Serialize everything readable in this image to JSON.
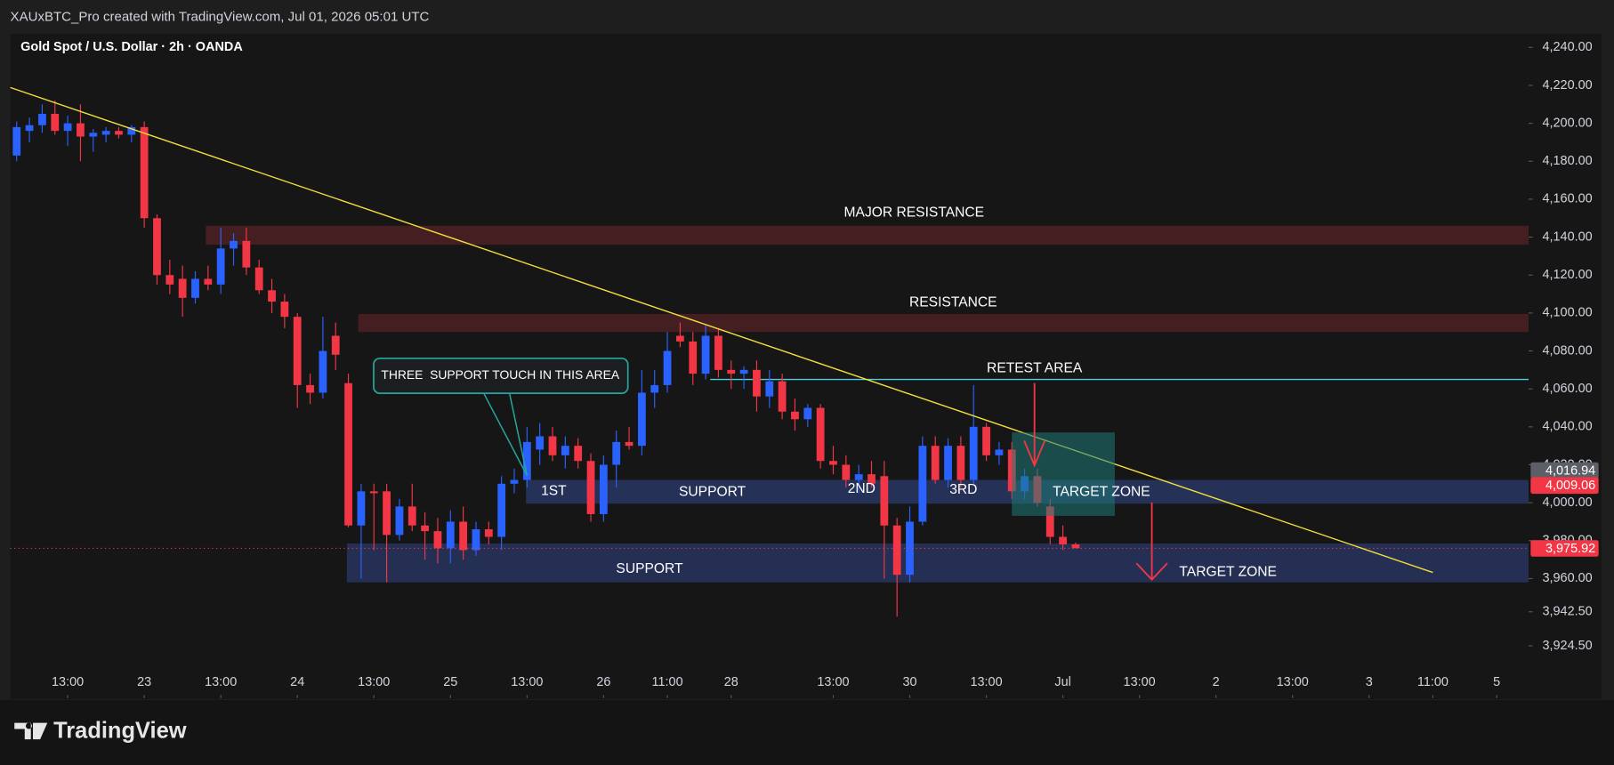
{
  "header": {
    "caption": "XAUxBTC_Pro created with TradingView.com, Jul 01, 2026 05:01 UTC",
    "brand": "TradingView"
  },
  "chart_data": {
    "type": "candlestick",
    "title": "Gold Spot / U.S. Dollar · 2h · OANDA",
    "up_color": "#2962ff",
    "down_color": "#f23645",
    "open": [
      4183,
      4196,
      4199,
      4205,
      4196,
      4200,
      4193,
      4194,
      4196,
      4194,
      4198,
      4150,
      4120,
      4118,
      4108,
      4118,
      4115,
      4134,
      4138,
      4124,
      4112,
      4106,
      4098,
      4062,
      4058,
      4088,
      4063,
      3988,
      4006,
      4006,
      3983,
      3998,
      3988,
      3985,
      3976,
      3990,
      3975,
      3986,
      3982,
      4010,
      4012,
      4028,
      4035,
      4025,
      4030,
      4022,
      3994,
      4020,
      4032,
      4030,
      4058,
      4062,
      4088,
      4085,
      4068,
      4088,
      4070,
      4068,
      4070,
      4056,
      4064,
      4048,
      4044,
      4050,
      4022,
      4020,
      4012,
      4015,
      4014,
      3988,
      3962,
      3990,
      4030,
      4012,
      4030,
      4012,
      4040,
      4025,
      4028,
      4006,
      4014,
      3998,
      3982,
      3978
    ],
    "high": [
      4201,
      4203,
      4210,
      4212,
      4204,
      4210,
      4197,
      4198,
      4198,
      4199,
      4201,
      4152,
      4128,
      4125,
      4122,
      4125,
      4145,
      4142,
      4145,
      4128,
      4118,
      4110,
      4100,
      4068,
      4098,
      4095,
      4068,
      4010,
      4010,
      4010,
      4002,
      4010,
      3995,
      3992,
      3996,
      3998,
      3990,
      3990,
      4014,
      4018,
      4040,
      4042,
      4040,
      4035,
      4034,
      4026,
      4025,
      4038,
      4040,
      4070,
      4070,
      4090,
      4095,
      4090,
      4094,
      4092,
      4075,
      4072,
      4075,
      4070,
      4068,
      4055,
      4052,
      4052,
      4030,
      4025,
      4020,
      4022,
      4022,
      3992,
      3998,
      4035,
      4035,
      4034,
      4035,
      4062,
      4042,
      4032,
      4032,
      4018,
      4018,
      4002,
      3988,
      3979
    ],
    "low": [
      4180,
      4190,
      4195,
      4194,
      4188,
      4180,
      4185,
      4190,
      4192,
      4190,
      4145,
      4115,
      4110,
      4098,
      4105,
      4112,
      4110,
      4125,
      4120,
      4110,
      4100,
      4092,
      4050,
      4052,
      4055,
      4070,
      3987,
      3960,
      3975,
      3958,
      3980,
      3985,
      3970,
      3968,
      3968,
      3970,
      3972,
      3978,
      3975,
      4005,
      4008,
      4020,
      4022,
      4018,
      4018,
      3990,
      3990,
      4008,
      4028,
      4025,
      4050,
      4058,
      4082,
      4062,
      4065,
      4066,
      4060,
      4060,
      4048,
      4050,
      4044,
      4038,
      4040,
      4018,
      4015,
      4008,
      4005,
      4008,
      3960,
      3940,
      3958,
      3988,
      4010,
      4008,
      4008,
      4010,
      4022,
      4020,
      4002,
      4002,
      3998,
      3978,
      3975,
      3976
    ],
    "close": [
      4198,
      4199,
      4205,
      4196,
      4200,
      4193,
      4195,
      4196,
      4194,
      4198,
      4150,
      4120,
      4115,
      4108,
      4118,
      4115,
      4134,
      4138,
      4124,
      4112,
      4106,
      4098,
      4062,
      4058,
      4080,
      4078,
      3988,
      4006,
      4005,
      3983,
      3998,
      3988,
      3985,
      3976,
      3990,
      3975,
      3986,
      3982,
      4010,
      4012,
      4032,
      4035,
      4025,
      4030,
      4022,
      3994,
      4020,
      4032,
      4030,
      4058,
      4062,
      4080,
      4085,
      4068,
      4088,
      4070,
      4068,
      4070,
      4056,
      4064,
      4048,
      4044,
      4050,
      4022,
      4020,
      4012,
      4015,
      4010,
      3988,
      3962,
      3990,
      4030,
      4012,
      4030,
      4012,
      4040,
      4025,
      4028,
      4006,
      4014,
      4000,
      3982,
      3978,
      3976
    ],
    "xlim": [
      -0.5,
      118.5
    ],
    "xticks": [
      {
        "value": 4,
        "label": "13:00"
      },
      {
        "value": 10,
        "label": "23"
      },
      {
        "value": 16,
        "label": "13:00"
      },
      {
        "value": 22,
        "label": "24"
      },
      {
        "value": 28,
        "label": "13:00"
      },
      {
        "value": 34,
        "label": "25"
      },
      {
        "value": 40,
        "label": "13:00"
      },
      {
        "value": 46,
        "label": "26"
      },
      {
        "value": 51,
        "label": "11:00"
      },
      {
        "value": 56,
        "label": "28"
      },
      {
        "value": 64,
        "label": "13:00"
      },
      {
        "value": 70,
        "label": "30"
      },
      {
        "value": 76,
        "label": "13:00"
      },
      {
        "value": 82,
        "label": "Jul"
      },
      {
        "value": 88,
        "label": "13:00"
      },
      {
        "value": 94,
        "label": "2"
      },
      {
        "value": 100,
        "label": "13:00"
      },
      {
        "value": 106,
        "label": "3"
      },
      {
        "value": 111,
        "label": "11:00"
      },
      {
        "value": 116,
        "label": "5"
      }
    ],
    "ylim": [
      3897,
      4246
    ],
    "yticks": [
      {
        "value": 4240,
        "label": "4,240.00"
      },
      {
        "value": 4220,
        "label": "4,220.00"
      },
      {
        "value": 4200,
        "label": "4,200.00"
      },
      {
        "value": 4180,
        "label": "4,180.00"
      },
      {
        "value": 4160,
        "label": "4,160.00"
      },
      {
        "value": 4140,
        "label": "4,140.00"
      },
      {
        "value": 4120,
        "label": "4,120.00"
      },
      {
        "value": 4100,
        "label": "4,100.00"
      },
      {
        "value": 4080,
        "label": "4,080.00"
      },
      {
        "value": 4060,
        "label": "4,060.00"
      },
      {
        "value": 4040,
        "label": "4,040.00"
      },
      {
        "value": 4020,
        "label": "4,020.00"
      },
      {
        "value": 4000,
        "label": "4,000.00"
      },
      {
        "value": 3980,
        "label": "3,980.00"
      },
      {
        "value": 3960,
        "label": "3,960.00"
      },
      {
        "value": 3942.5,
        "label": "3,942.50"
      },
      {
        "value": 3924.5,
        "label": "3,924.50"
      }
    ],
    "zones": [
      {
        "from": 4146,
        "to": 4136,
        "color": "#4a1f22"
      },
      {
        "from": 4099.5,
        "to": 4090,
        "color": "#4a1f22"
      },
      {
        "from": 4012,
        "to": 3999.5,
        "color": "#27345e"
      },
      {
        "from": 3978.5,
        "to": 3958,
        "color": "#26325a"
      }
    ],
    "retest_level": 4065,
    "price_tags": [
      {
        "value": 4016.94,
        "label": "4,016.94",
        "color": "#5d5f66"
      },
      {
        "value": 4009.06,
        "label": "4,009.06",
        "color": "#f23645"
      },
      {
        "value": 3975.92,
        "label": "3,975.92",
        "color": "#f23645"
      }
    ],
    "annotations": [
      "MAJOR RESISTANCE",
      "RESISTANCE",
      "RETEST AREA",
      "SUPPORT",
      "SUPPORT",
      "TARGET ZONE",
      "TARGET ZONE",
      "1ST",
      "2ND",
      "3RD",
      "THREE  SUPPORT TOUCH IN THIS AREA"
    ]
  }
}
